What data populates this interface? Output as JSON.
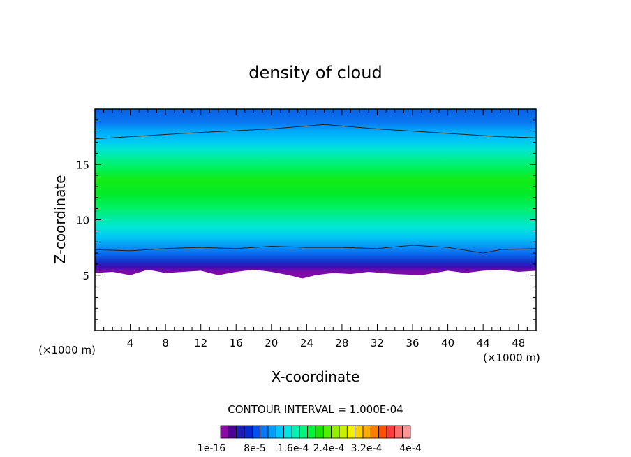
{
  "chart_data": {
    "type": "heatmap",
    "title": "density of cloud",
    "xlabel": "X-coordinate",
    "ylabel": "Z-coordinate",
    "x_unit_left": "(×1000 m)",
    "x_unit_right": "(×1000 m)",
    "xlim": [
      0,
      50
    ],
    "ylim": [
      0,
      20
    ],
    "xticks": [
      4,
      8,
      12,
      16,
      20,
      24,
      28,
      32,
      36,
      40,
      44,
      48
    ],
    "xtick_labels": [
      "4",
      "8",
      "12",
      "16",
      "20",
      "24",
      "28",
      "32",
      "36",
      "40",
      "44",
      "48"
    ],
    "yticks": [
      5,
      10,
      15
    ],
    "ytick_labels": [
      "5",
      "10",
      "15"
    ],
    "cloud_base_km": [
      [
        0,
        5.2
      ],
      [
        2,
        5.3
      ],
      [
        4,
        5.0
      ],
      [
        6,
        5.5
      ],
      [
        8,
        5.2
      ],
      [
        10,
        5.3
      ],
      [
        12,
        5.4
      ],
      [
        14,
        5.0
      ],
      [
        16,
        5.3
      ],
      [
        18,
        5.5
      ],
      [
        20,
        5.3
      ],
      [
        22,
        5.0
      ],
      [
        23.5,
        4.7
      ],
      [
        25,
        5.0
      ],
      [
        27,
        5.2
      ],
      [
        29,
        5.1
      ],
      [
        31,
        5.3
      ],
      [
        34,
        5.1
      ],
      [
        37,
        5.0
      ],
      [
        40,
        5.4
      ],
      [
        42,
        5.2
      ],
      [
        44,
        5.4
      ],
      [
        46,
        5.5
      ],
      [
        48,
        5.3
      ],
      [
        50,
        5.4
      ]
    ],
    "core_max_km": 12.2,
    "upper_contour_km": [
      [
        0,
        17.3
      ],
      [
        10,
        17.8
      ],
      [
        20,
        18.2
      ],
      [
        26,
        18.6
      ],
      [
        32,
        18.2
      ],
      [
        40,
        17.8
      ],
      [
        46,
        17.5
      ],
      [
        50,
        17.4
      ]
    ],
    "lower_contour_km": [
      [
        0,
        7.3
      ],
      [
        4,
        7.2
      ],
      [
        8,
        7.4
      ],
      [
        12,
        7.5
      ],
      [
        16,
        7.4
      ],
      [
        20,
        7.6
      ],
      [
        24,
        7.5
      ],
      [
        28,
        7.5
      ],
      [
        32,
        7.4
      ],
      [
        36,
        7.7
      ],
      [
        40,
        7.5
      ],
      [
        44,
        7.0
      ],
      [
        46,
        7.3
      ],
      [
        50,
        7.4
      ]
    ],
    "contour_interval_text": "CONTOUR INTERVAL = 1.000E-04",
    "colorbar": {
      "colors": [
        "#8b0aa5",
        "#4b0096",
        "#1e1eb4",
        "#0a28d2",
        "#0050f0",
        "#0a78f5",
        "#00a0fa",
        "#00c8ff",
        "#00e6e6",
        "#00f5b4",
        "#00f57d",
        "#00f53c",
        "#19e600",
        "#50f000",
        "#96f000",
        "#c8f000",
        "#f5f000",
        "#ffd200",
        "#ffaa00",
        "#ff7d00",
        "#ff5000",
        "#ff3c3c",
        "#ff6e6e",
        "#ff9696"
      ],
      "labels": [
        "1e-16",
        "8e-5",
        "1.6e-4",
        "2.4e-4",
        "3.2e-4",
        "4e-4"
      ]
    }
  }
}
